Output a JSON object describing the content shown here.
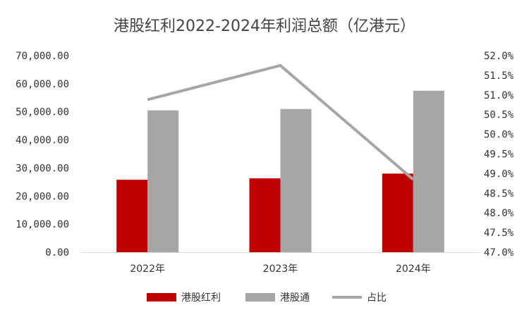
{
  "chart_data": {
    "type": "bar",
    "title": "港股红利2022-2024年利润总额（亿港元）",
    "categories": [
      "2022年",
      "2023年",
      "2024年"
    ],
    "series": [
      {
        "name": "港股红利",
        "type": "bar",
        "axis": "left",
        "color": "#c00000",
        "values": [
          25800,
          26300,
          28000
        ]
      },
      {
        "name": "港股通",
        "type": "bar",
        "axis": "left",
        "color": "#a6a6a6",
        "values": [
          50500,
          51000,
          57500
        ]
      },
      {
        "name": "占比",
        "type": "line",
        "axis": "right",
        "color": "#a6a6a6",
        "values": [
          50.88,
          51.75,
          48.85
        ]
      }
    ],
    "y_left": {
      "min": 0,
      "max": 70000,
      "step": 10000,
      "ticks": [
        "0.00",
        "10,000.00",
        "20,000.00",
        "30,000.00",
        "40,000.00",
        "50,000.00",
        "60,000.00",
        "70,000.00"
      ]
    },
    "y_right": {
      "min": 47.0,
      "max": 52.0,
      "step": 0.5,
      "ticks": [
        "47.0%",
        "47.5%",
        "48.0%",
        "48.5%",
        "49.0%",
        "49.5%",
        "50.0%",
        "50.5%",
        "51.0%",
        "51.5%",
        "52.0%"
      ]
    },
    "legend_position": "bottom",
    "grid": false
  }
}
